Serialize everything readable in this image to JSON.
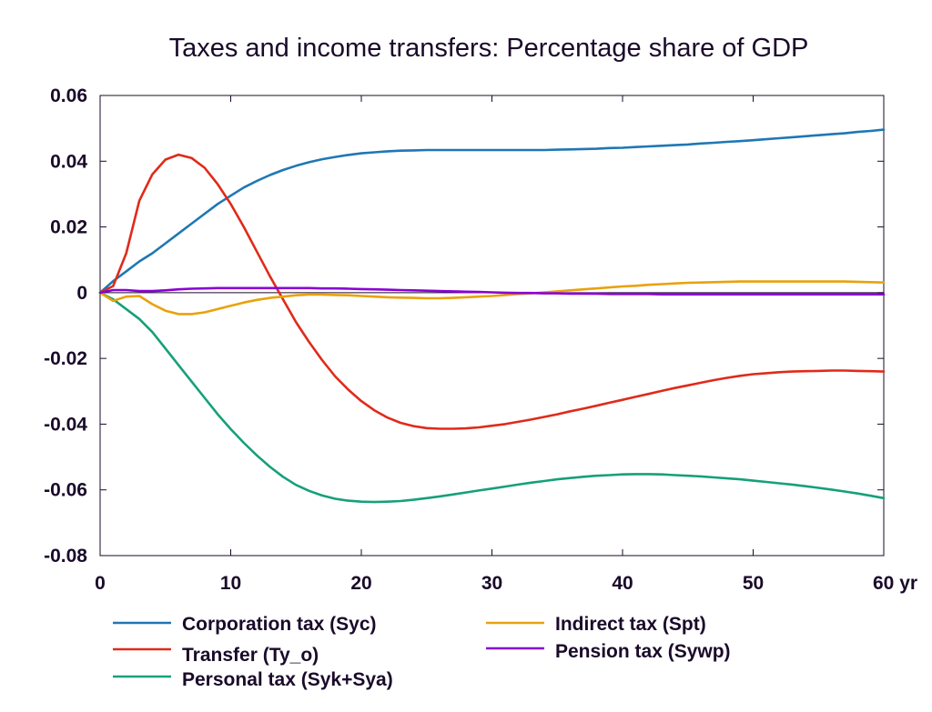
{
  "chart_data": {
    "type": "line",
    "title": "Taxes and income transfers: Percentage share of GDP",
    "xlabel": "",
    "ylabel": "",
    "xlim": [
      0,
      60
    ],
    "ylim": [
      -0.08,
      0.06
    ],
    "x_ticks": [
      0,
      10,
      20,
      30,
      40,
      50,
      60
    ],
    "x_tick_labels": [
      "0",
      "10",
      "20",
      "30",
      "40",
      "50",
      "60 yr"
    ],
    "y_ticks": [
      -0.08,
      -0.06,
      -0.04,
      -0.02,
      0,
      0.02,
      0.04,
      0.06
    ],
    "y_tick_labels": [
      "-0.08",
      "-0.06",
      "-0.04",
      "-0.02",
      "0",
      "0.02",
      "0.04",
      "0.06"
    ],
    "grid": false,
    "legend_position": "bottom",
    "x": [
      0,
      1,
      2,
      3,
      4,
      5,
      6,
      7,
      8,
      9,
      10,
      11,
      12,
      13,
      14,
      15,
      16,
      17,
      18,
      19,
      20,
      21,
      22,
      23,
      24,
      25,
      26,
      27,
      28,
      29,
      30,
      31,
      32,
      33,
      34,
      35,
      36,
      37,
      38,
      39,
      40,
      41,
      42,
      43,
      44,
      45,
      46,
      47,
      48,
      49,
      50,
      51,
      52,
      53,
      54,
      55,
      56,
      57,
      58,
      59,
      60
    ],
    "series": [
      {
        "name": "Corporation tax (Syc)",
        "color": "#1f77b4",
        "values": [
          0,
          0.0035,
          0.0065,
          0.0095,
          0.012,
          0.015,
          0.018,
          0.021,
          0.024,
          0.027,
          0.0295,
          0.032,
          0.034,
          0.0358,
          0.0373,
          0.0386,
          0.0397,
          0.0406,
          0.0413,
          0.0419,
          0.0424,
          0.0427,
          0.043,
          0.0432,
          0.0433,
          0.0434,
          0.0434,
          0.0434,
          0.0434,
          0.0434,
          0.0434,
          0.0434,
          0.0434,
          0.0434,
          0.0434,
          0.0435,
          0.0436,
          0.0437,
          0.0438,
          0.044,
          0.0441,
          0.0443,
          0.0445,
          0.0447,
          0.0449,
          0.0451,
          0.0454,
          0.0456,
          0.0459,
          0.0461,
          0.0464,
          0.0467,
          0.047,
          0.0473,
          0.0476,
          0.0479,
          0.0482,
          0.0485,
          0.0489,
          0.0492,
          0.0496
        ]
      },
      {
        "name": "Transfer (Ty_o)",
        "color": "#e02a1a",
        "values": [
          0,
          0.002,
          0.012,
          0.028,
          0.036,
          0.0405,
          0.042,
          0.041,
          0.038,
          0.033,
          0.027,
          0.02,
          0.0125,
          0.005,
          -0.002,
          -0.009,
          -0.015,
          -0.0205,
          -0.0255,
          -0.0295,
          -0.033,
          -0.0358,
          -0.038,
          -0.0396,
          -0.0406,
          -0.0412,
          -0.0414,
          -0.0414,
          -0.0413,
          -0.041,
          -0.0405,
          -0.04,
          -0.0393,
          -0.0386,
          -0.0378,
          -0.037,
          -0.0361,
          -0.0353,
          -0.0344,
          -0.0335,
          -0.0326,
          -0.0317,
          -0.0308,
          -0.0299,
          -0.029,
          -0.0282,
          -0.0274,
          -0.0266,
          -0.0259,
          -0.0253,
          -0.0248,
          -0.0245,
          -0.0242,
          -0.024,
          -0.0239,
          -0.0238,
          -0.0237,
          -0.0237,
          -0.0238,
          -0.0239,
          -0.024
        ]
      },
      {
        "name": "Personal tax (Syk+Sya)",
        "color": "#16a07a",
        "values": [
          0,
          -0.002,
          -0.005,
          -0.008,
          -0.012,
          -0.017,
          -0.022,
          -0.027,
          -0.032,
          -0.037,
          -0.0415,
          -0.0457,
          -0.0495,
          -0.053,
          -0.056,
          -0.0585,
          -0.0603,
          -0.0617,
          -0.0627,
          -0.0633,
          -0.0636,
          -0.0637,
          -0.0636,
          -0.0634,
          -0.063,
          -0.0625,
          -0.062,
          -0.0614,
          -0.0608,
          -0.0602,
          -0.0596,
          -0.059,
          -0.0584,
          -0.0578,
          -0.0573,
          -0.0568,
          -0.0564,
          -0.056,
          -0.0557,
          -0.0555,
          -0.0553,
          -0.0552,
          -0.0552,
          -0.0553,
          -0.0555,
          -0.0557,
          -0.0559,
          -0.0562,
          -0.0565,
          -0.0568,
          -0.0572,
          -0.0576,
          -0.058,
          -0.0584,
          -0.0589,
          -0.0594,
          -0.0599,
          -0.0605,
          -0.0611,
          -0.0618,
          -0.0625
        ]
      },
      {
        "name": "Indirect tax (Spt)",
        "color": "#e8a20c",
        "values": [
          0,
          -0.0025,
          -0.0012,
          -0.001,
          -0.0035,
          -0.0055,
          -0.0065,
          -0.0065,
          -0.006,
          -0.005,
          -0.004,
          -0.003,
          -0.0022,
          -0.0016,
          -0.0012,
          -0.0008,
          -0.0006,
          -0.0006,
          -0.0007,
          -0.0008,
          -0.001,
          -0.0012,
          -0.0014,
          -0.0015,
          -0.0016,
          -0.0017,
          -0.0017,
          -0.0016,
          -0.0014,
          -0.0012,
          -0.001,
          -0.0007,
          -0.0004,
          -0.0002,
          0.0001,
          0.0004,
          0.0007,
          0.001,
          0.0013,
          0.0016,
          0.0019,
          0.0021,
          0.0024,
          0.0026,
          0.0028,
          0.003,
          0.0031,
          0.0032,
          0.0033,
          0.0034,
          0.0034,
          0.0034,
          0.0034,
          0.0034,
          0.0034,
          0.0034,
          0.0034,
          0.0034,
          0.0033,
          0.0032,
          0.0031
        ]
      },
      {
        "name": "Pension tax (Sywp)",
        "color": "#8a00d4",
        "values": [
          0,
          0.0008,
          0.0008,
          0.0005,
          0.0005,
          0.0007,
          0.001,
          0.0012,
          0.0013,
          0.0014,
          0.0014,
          0.0014,
          0.0014,
          0.0014,
          0.0014,
          0.0014,
          0.0014,
          0.0013,
          0.0013,
          0.0012,
          0.0011,
          0.001,
          0.0009,
          0.0008,
          0.0007,
          0.0006,
          0.0005,
          0.0004,
          0.0003,
          0.0002,
          0.0001,
          0.0,
          -0.0001,
          -0.0001,
          -0.0002,
          -0.0002,
          -0.0003,
          -0.0003,
          -0.0003,
          -0.0004,
          -0.0004,
          -0.0004,
          -0.0004,
          -0.0005,
          -0.0005,
          -0.0005,
          -0.0005,
          -0.0005,
          -0.0005,
          -0.0005,
          -0.0005,
          -0.0005,
          -0.0005,
          -0.0005,
          -0.0005,
          -0.0005,
          -0.0005,
          -0.0005,
          -0.0005,
          -0.0005,
          -0.0005
        ]
      }
    ],
    "legend_order": [
      {
        "series": 0,
        "column": 0,
        "row": 0
      },
      {
        "series": 1,
        "column": 0,
        "row": 1
      },
      {
        "series": 2,
        "column": 0,
        "row": 2
      },
      {
        "series": 3,
        "column": 1,
        "row": 0
      },
      {
        "series": 4,
        "column": 1,
        "row": 1
      }
    ],
    "zero_line": true
  }
}
